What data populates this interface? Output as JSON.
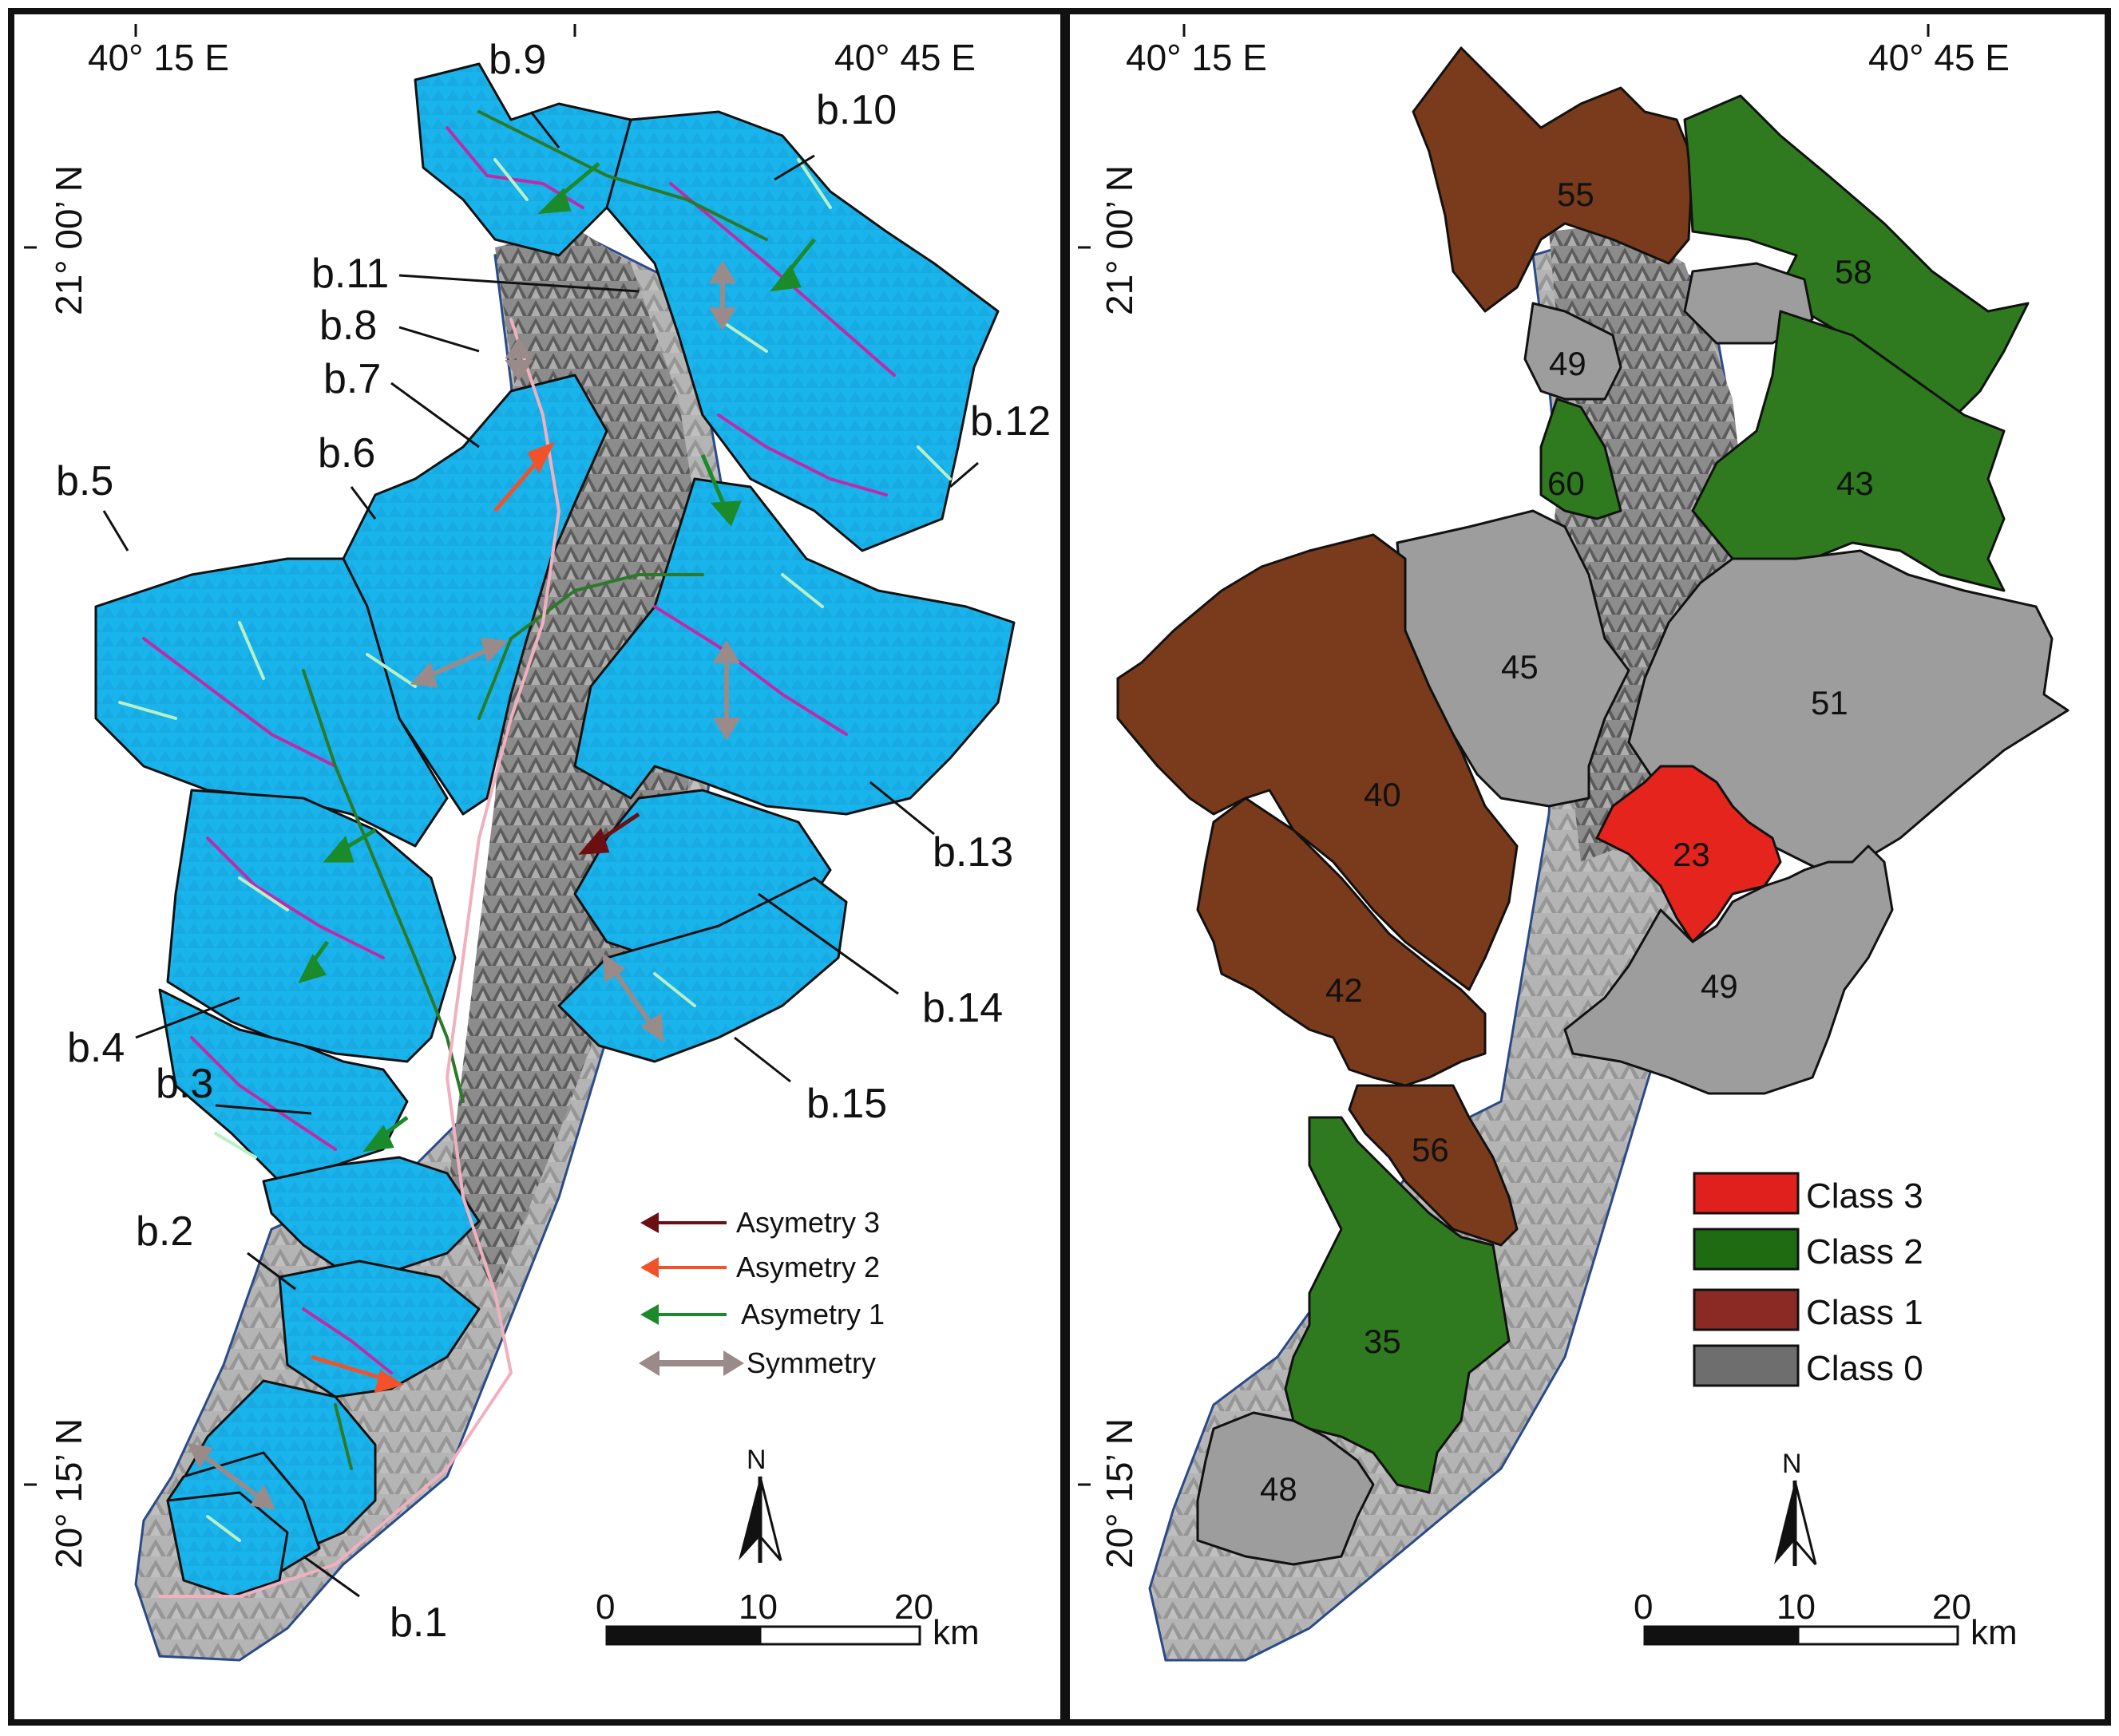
{
  "left_panel": {
    "coords": {
      "lon_left": "40° 15 E",
      "lon_right": "40° 45 E",
      "lat_top": "21° 00’ N",
      "lat_bottom": "20° 15’ N"
    },
    "basins": [
      "b.1",
      "b.2",
      "b.3",
      "b.4",
      "b.5",
      "b.6",
      "b.7",
      "b.8",
      "b.9",
      "b.10",
      "b.11",
      "b.12",
      "b.13",
      "b.14",
      "b.15"
    ],
    "legend": [
      {
        "label": "Asymetry 3",
        "color": "#6b0f12"
      },
      {
        "label": "Asymetry 2",
        "color": "#f2522a"
      },
      {
        "label": "Asymetry 1",
        "color": "#1a8a2a"
      },
      {
        "label": "Symmetry",
        "color": "#9a8a8a"
      }
    ],
    "north": "N",
    "scale": {
      "t0": "0",
      "t1": "10",
      "t2": "20",
      "unit": "km"
    }
  },
  "right_panel": {
    "coords": {
      "lon_left": "40° 15 E",
      "lon_right": "40° 45 E",
      "lat_top": "21° 00’ N",
      "lat_bottom": "20° 15’ N"
    },
    "basin_values": [
      "55",
      "58",
      "49",
      "60",
      "43",
      "45",
      "51",
      "40",
      "23",
      "42",
      "49",
      "56",
      "35",
      "48"
    ],
    "legend": [
      {
        "label": "Class 3",
        "color": "#e0201c"
      },
      {
        "label": "Class 2",
        "color": "#1e6b12"
      },
      {
        "label": "Class 1",
        "color": "#8b2a24"
      },
      {
        "label": "Class 0",
        "color": "#6e6e6e"
      }
    ],
    "class_colors": {
      "class3": "#e5241e",
      "class2": "#2f7a1e",
      "class1": "#7a3a1c",
      "class0": "#9d9d9d"
    },
    "north": "N",
    "scale": {
      "t0": "0",
      "t1": "10",
      "t2": "20",
      "unit": "km"
    }
  },
  "colors": {
    "basin_fill": "#19b4ec",
    "relief": "#a8a8a8",
    "stream_light": "#b8f0c8",
    "stream_mid": "#c02aa8",
    "stream_main": "#2a7a2a"
  }
}
